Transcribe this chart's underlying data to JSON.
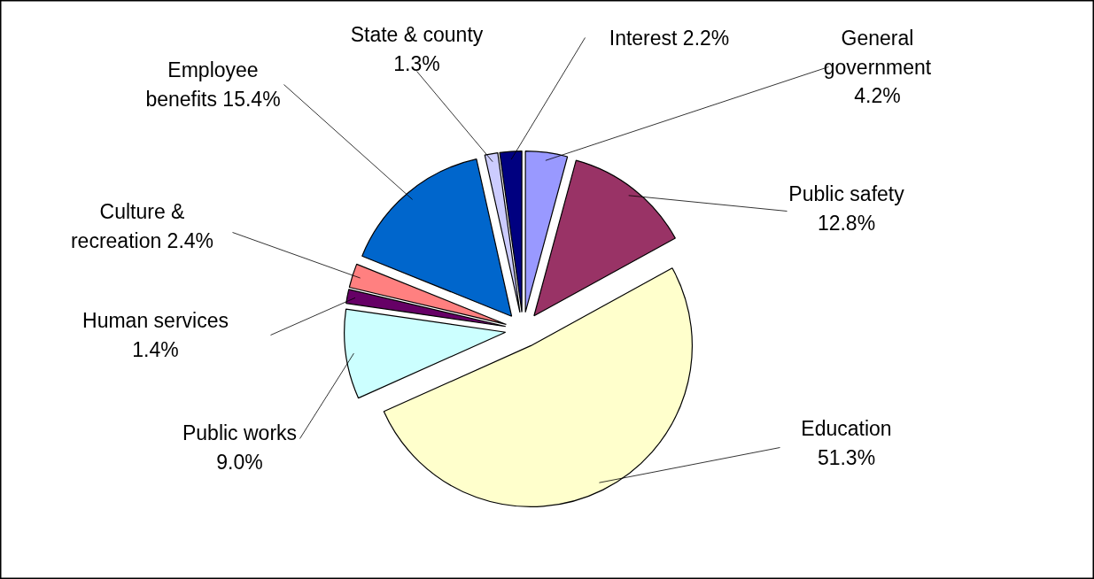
{
  "chart_data": {
    "type": "pie",
    "categories": [
      "General government",
      "Public safety",
      "Education",
      "Public works",
      "Human services",
      "Culture & recreation",
      "Employee benefits",
      "State & county",
      "Interest"
    ],
    "values": [
      4.2,
      12.8,
      51.3,
      9.0,
      1.4,
      2.4,
      15.4,
      1.3,
      2.2
    ],
    "colors": [
      "#9999ff",
      "#993366",
      "#ffffcc",
      "#ccffff",
      "#660066",
      "#ff8080",
      "#0066cc",
      "#ccccff",
      "#000080"
    ],
    "value_labels": [
      "4.2%",
      "12.8%",
      "51.3%",
      "9.0%",
      "1.4%",
      "2.4%",
      "15.4%",
      "1.3%",
      "2.2%"
    ]
  }
}
